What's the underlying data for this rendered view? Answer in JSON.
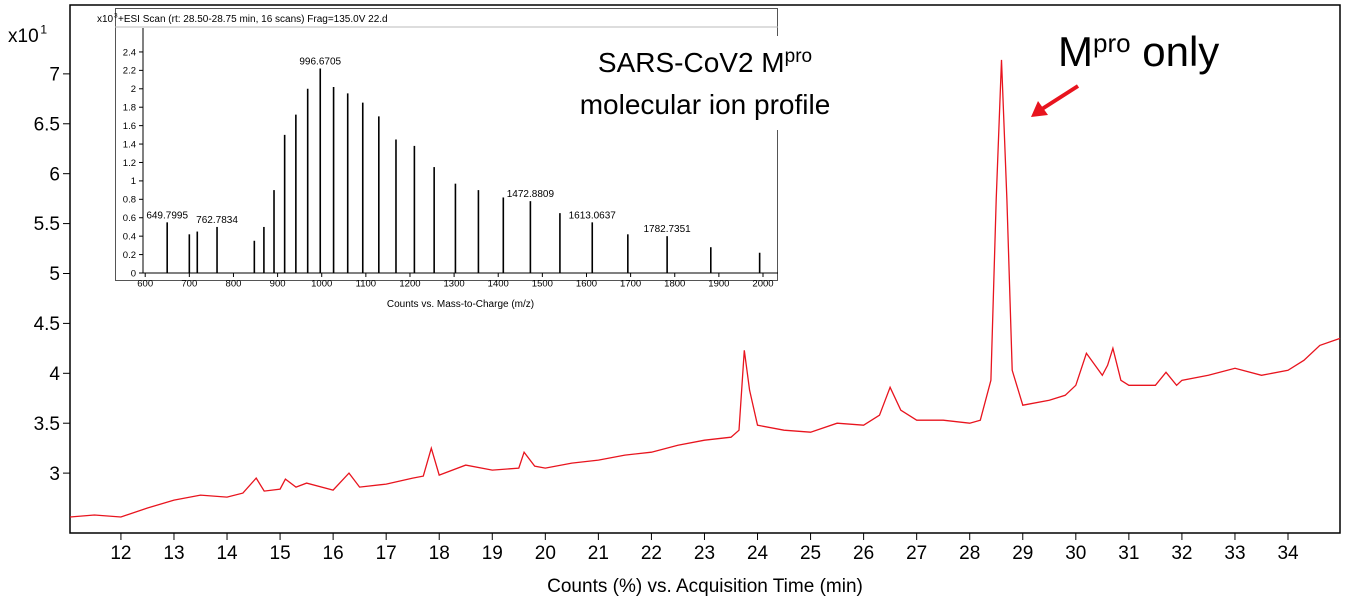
{
  "chart_data": [
    {
      "type": "line",
      "xlabel": "Counts (%) vs. Acquisition Time (min)",
      "y_multiplier": "x10",
      "y_exponent": 1,
      "color": "#e8141e",
      "x": [
        11.04,
        11.5,
        12,
        12.5,
        13,
        13.5,
        14,
        14.3,
        14.55,
        14.7,
        15,
        15.1,
        15.3,
        15.5,
        16,
        16.3,
        16.5,
        17,
        17.5,
        17.7,
        17.85,
        18,
        18.5,
        19,
        19.5,
        19.6,
        19.8,
        20,
        20.5,
        21,
        21.5,
        22,
        22.5,
        23,
        23.5,
        23.65,
        23.75,
        23.85,
        24,
        24.5,
        25,
        25.5,
        26,
        26.3,
        26.5,
        26.7,
        27,
        27.5,
        28,
        28.2,
        28.4,
        28.5,
        28.6,
        28.7,
        28.8,
        29,
        29.5,
        29.8,
        30,
        30.2,
        30.5,
        30.6,
        30.7,
        30.85,
        31,
        31.5,
        31.7,
        31.9,
        32,
        32.5,
        33,
        33.5,
        34,
        34.3,
        34.6,
        34.98
      ],
      "values": [
        2.56,
        2.58,
        2.56,
        2.65,
        2.73,
        2.78,
        2.76,
        2.8,
        2.95,
        2.82,
        2.84,
        2.94,
        2.86,
        2.9,
        2.83,
        3.0,
        2.86,
        2.89,
        2.95,
        2.97,
        3.25,
        2.98,
        3.08,
        3.03,
        3.05,
        3.21,
        3.07,
        3.05,
        3.1,
        3.13,
        3.18,
        3.21,
        3.28,
        3.33,
        3.36,
        3.43,
        4.23,
        3.83,
        3.48,
        3.43,
        3.41,
        3.5,
        3.48,
        3.58,
        3.86,
        3.63,
        3.53,
        3.53,
        3.5,
        3.53,
        3.93,
        5.74,
        7.14,
        5.74,
        4.03,
        3.68,
        3.73,
        3.78,
        3.88,
        4.2,
        3.98,
        4.08,
        4.25,
        3.93,
        3.88,
        3.88,
        4.01,
        3.88,
        3.93,
        3.98,
        4.05,
        3.98,
        4.03,
        4.13,
        4.28,
        4.35
      ],
      "xlim": [
        11.04,
        34.98
      ],
      "xticks": [
        12,
        13,
        14,
        15,
        16,
        17,
        18,
        19,
        20,
        21,
        22,
        23,
        24,
        25,
        26,
        27,
        28,
        29,
        30,
        31,
        32,
        33,
        34
      ],
      "ylim": [
        2.4,
        7.69
      ],
      "yticks": [
        3,
        3.5,
        4,
        4.5,
        5,
        5.5,
        6,
        6.5,
        7
      ],
      "annotations": [
        {
          "text": "SARS-CoV2 M",
          "sup": "pro"
        },
        {
          "text": "molecular ion profile"
        },
        {
          "text": "M",
          "sup": "pro",
          "tail": " only"
        }
      ]
    },
    {
      "type": "stem",
      "title": "+ESI Scan (rt: 28.50-28.75 min, 16 scans) Frag=135.0V 22.d",
      "xlabel": "Counts vs. Mass-to-Charge (m/z)",
      "y_multiplier": "x10",
      "y_exponent": 3,
      "color": "#000000",
      "x": [
        649.7995,
        700,
        718,
        762.7834,
        847.3,
        869.0,
        891.9,
        916.0,
        941.4,
        968.2,
        996.6705,
        1026.9,
        1058.9,
        1093.0,
        1129.4,
        1168.3,
        1210.0,
        1254.8,
        1303.0,
        1355.1,
        1411.5,
        1472.8809,
        1539.8,
        1613.0637,
        1693.7,
        1782.7351,
        1881.7,
        1992.4
      ],
      "values": [
        0.55,
        0.42,
        0.45,
        0.5,
        0.35,
        0.5,
        0.9,
        1.5,
        1.72,
        2.0,
        2.22,
        2.02,
        1.95,
        1.85,
        1.7,
        1.45,
        1.38,
        1.15,
        0.97,
        0.9,
        0.82,
        0.78,
        0.65,
        0.55,
        0.42,
        0.4,
        0.28,
        0.22
      ],
      "peak_labels": [
        649.7995,
        762.7834,
        996.6705,
        1472.8809,
        1613.0637,
        1782.7351
      ],
      "xlim": [
        595,
        2034
      ],
      "xticks": [
        600,
        700,
        800,
        900,
        1000,
        1100,
        1200,
        1300,
        1400,
        1500,
        1600,
        1700,
        1800,
        1900,
        2000
      ],
      "ylim": [
        0,
        2.66
      ],
      "yticks": [
        0,
        0.2,
        0.4,
        0.6,
        0.8,
        1,
        1.2,
        1.4,
        1.6,
        1.8,
        2,
        2.2,
        2.4
      ]
    }
  ]
}
